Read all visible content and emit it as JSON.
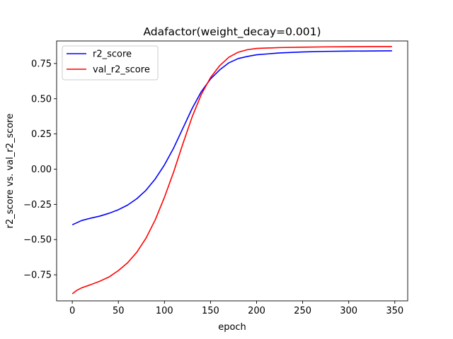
{
  "chart_data": {
    "type": "line",
    "title": "Adafactor(weight_decay=0.001)",
    "xlabel": "epoch",
    "ylabel": "r2_score vs. val_r2_score",
    "xlim": [
      -17,
      364
    ],
    "ylim": [
      -0.935,
      0.91
    ],
    "xticks": [
      0,
      50,
      100,
      150,
      200,
      250,
      300,
      350
    ],
    "yticks": [
      -0.75,
      -0.5,
      -0.25,
      0.0,
      0.25,
      0.5,
      0.75
    ],
    "ytick_labels": [
      "−0.75",
      "−0.50",
      "−0.25",
      "0.00",
      "0.25",
      "0.50",
      "0.75"
    ],
    "grid": false,
    "legend_position": "top-left",
    "series": [
      {
        "name": "r2_score",
        "color": "#0000ff",
        "points": [
          [
            0,
            -0.395
          ],
          [
            5,
            -0.38
          ],
          [
            10,
            -0.365
          ],
          [
            20,
            -0.348
          ],
          [
            30,
            -0.333
          ],
          [
            40,
            -0.313
          ],
          [
            50,
            -0.288
          ],
          [
            60,
            -0.255
          ],
          [
            70,
            -0.21
          ],
          [
            80,
            -0.15
          ],
          [
            90,
            -0.07
          ],
          [
            100,
            0.03
          ],
          [
            110,
            0.15
          ],
          [
            120,
            0.29
          ],
          [
            130,
            0.43
          ],
          [
            140,
            0.55
          ],
          [
            150,
            0.64
          ],
          [
            160,
            0.705
          ],
          [
            170,
            0.755
          ],
          [
            180,
            0.785
          ],
          [
            190,
            0.8
          ],
          [
            200,
            0.812
          ],
          [
            225,
            0.825
          ],
          [
            250,
            0.832
          ],
          [
            275,
            0.836
          ],
          [
            300,
            0.838
          ],
          [
            325,
            0.839
          ],
          [
            347,
            0.84
          ]
        ]
      },
      {
        "name": "val_r2_score",
        "color": "#ff0000",
        "points": [
          [
            0,
            -0.885
          ],
          [
            5,
            -0.86
          ],
          [
            10,
            -0.843
          ],
          [
            20,
            -0.82
          ],
          [
            30,
            -0.795
          ],
          [
            40,
            -0.765
          ],
          [
            50,
            -0.72
          ],
          [
            60,
            -0.665
          ],
          [
            70,
            -0.59
          ],
          [
            80,
            -0.49
          ],
          [
            90,
            -0.36
          ],
          [
            100,
            -0.2
          ],
          [
            110,
            -0.02
          ],
          [
            120,
            0.18
          ],
          [
            130,
            0.37
          ],
          [
            140,
            0.53
          ],
          [
            150,
            0.65
          ],
          [
            160,
            0.735
          ],
          [
            170,
            0.795
          ],
          [
            180,
            0.83
          ],
          [
            190,
            0.848
          ],
          [
            200,
            0.857
          ],
          [
            225,
            0.863
          ],
          [
            250,
            0.866
          ],
          [
            275,
            0.868
          ],
          [
            300,
            0.869
          ],
          [
            325,
            0.87
          ],
          [
            347,
            0.87
          ]
        ]
      }
    ]
  }
}
